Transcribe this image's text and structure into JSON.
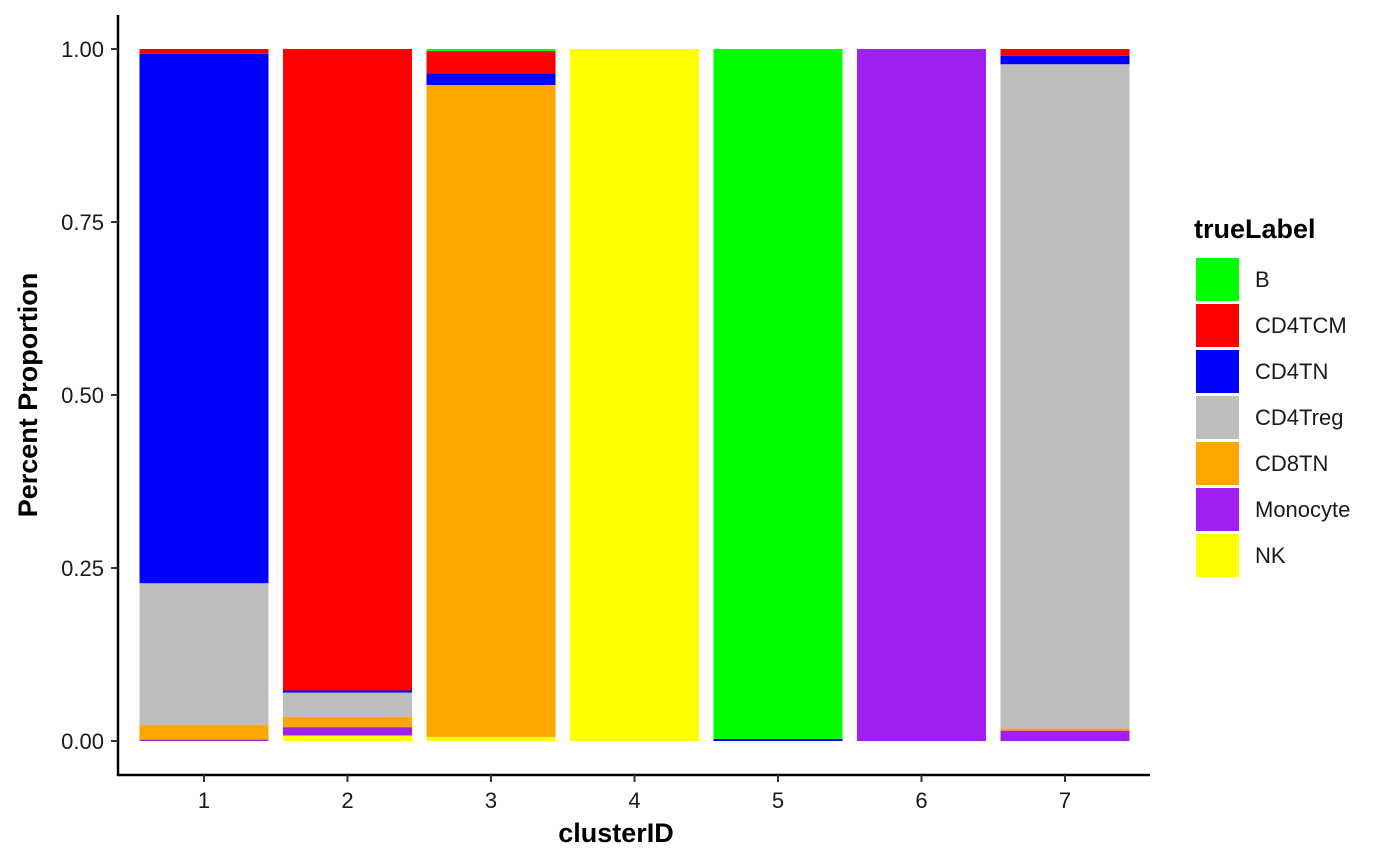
{
  "chart_data": {
    "type": "bar",
    "stacked": true,
    "categories": [
      "1",
      "2",
      "3",
      "4",
      "5",
      "6",
      "7"
    ],
    "xlabel": "clusterID",
    "ylabel": "Percent Proportion",
    "ylim": [
      0,
      1
    ],
    "yticks": [
      "0.00",
      "0.25",
      "0.50",
      "0.75",
      "1.00"
    ],
    "grid": false,
    "legend": {
      "title": "trueLabel",
      "position": "right"
    },
    "series": [
      {
        "name": "B",
        "color": "#00FF00",
        "values": [
          0.0,
          0.0,
          0.003,
          0.0,
          0.997,
          0.0,
          0.0
        ]
      },
      {
        "name": "CD4TCM",
        "color": "#FF0000",
        "values": [
          0.007,
          0.927,
          0.032,
          0.0,
          0.0,
          0.0,
          0.01
        ]
      },
      {
        "name": "CD4TN",
        "color": "#0000FF",
        "values": [
          0.765,
          0.003,
          0.017,
          0.0,
          0.003,
          0.0,
          0.012
        ]
      },
      {
        "name": "CD4Treg",
        "color": "#BEBEBE",
        "values": [
          0.205,
          0.035,
          0.0,
          0.0,
          0.0,
          0.0,
          0.96
        ]
      },
      {
        "name": "CD8TN",
        "color": "#FFA500",
        "values": [
          0.021,
          0.015,
          0.942,
          0.0,
          0.0,
          0.0,
          0.003
        ]
      },
      {
        "name": "Monocyte",
        "color": "#A020F0",
        "values": [
          0.002,
          0.012,
          0.0,
          0.0,
          0.0,
          1.0,
          0.015
        ]
      },
      {
        "name": "NK",
        "color": "#FFFF00",
        "values": [
          0.0,
          0.008,
          0.006,
          1.0,
          0.0,
          0.0,
          0.0
        ]
      }
    ]
  }
}
